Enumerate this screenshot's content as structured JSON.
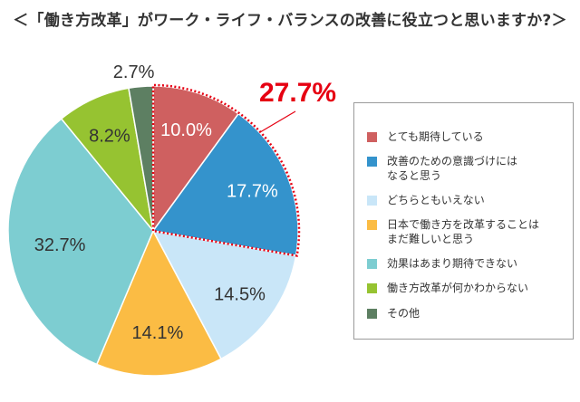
{
  "title": "＜「働き方改革」がワーク・ライフ・バランスの改善に役立つと思いますか?＞",
  "chart_data": {
    "type": "pie",
    "title": "＜「働き方改革」がワーク・ライフ・バランスの改善に役立つと思いますか?＞",
    "slices": [
      {
        "label": "とても期待している",
        "value": 10.0,
        "value_label": "10.0%",
        "color": "#cf6060"
      },
      {
        "label": "改善のための意識づけにはなると思う",
        "value": 17.7,
        "value_label": "17.7%",
        "color": "#3493cc"
      },
      {
        "label": "どちらともいえない",
        "value": 14.5,
        "value_label": "14.5%",
        "color": "#c9e6f8"
      },
      {
        "label": "日本で働き方を改革することはまだ難しいと思う",
        "value": 14.1,
        "value_label": "14.1%",
        "color": "#fbbc44"
      },
      {
        "label": "効果はあまり期待できない",
        "value": 32.7,
        "value_label": "32.7%",
        "color": "#7dcdd1"
      },
      {
        "label": "働き方改革が何かわからない",
        "value": 8.2,
        "value_label": "8.2%",
        "color": "#96c331"
      },
      {
        "label": "その他",
        "value": 2.7,
        "value_label": "2.7%",
        "color": "#5d7f62"
      }
    ],
    "highlight": {
      "value_label": "27.7%",
      "color": "#e60012"
    },
    "legend_position": "right"
  },
  "legend": [
    {
      "lines": [
        "とても期待している"
      ],
      "color": "#cf6060"
    },
    {
      "lines": [
        "改善のための意識づけには",
        "なると思う"
      ],
      "color": "#3493cc"
    },
    {
      "lines": [
        "どちらともいえない"
      ],
      "color": "#c9e6f8"
    },
    {
      "lines": [
        "日本で働き方を改革することは",
        "まだ難しいと思う"
      ],
      "color": "#fbbc44"
    },
    {
      "lines": [
        "効果はあまり期待できない"
      ],
      "color": "#7dcdd1"
    },
    {
      "lines": [
        "働き方改革が何かわからない"
      ],
      "color": "#96c331"
    },
    {
      "lines": [
        "その他"
      ],
      "color": "#5d7f62"
    }
  ]
}
